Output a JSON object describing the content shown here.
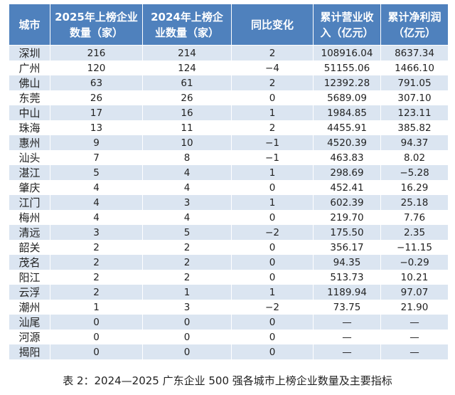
{
  "table": {
    "header": [
      "城市",
      "2025年上榜企业数量（家）",
      "2024年上榜企业数量（家）",
      "同比变化",
      "累计营业收入（亿元）",
      "累计净利润（亿元）"
    ],
    "rows": [
      [
        "深圳",
        "216",
        "214",
        "2",
        "108916.04",
        "8637.34"
      ],
      [
        "广州",
        "120",
        "124",
        "−4",
        "51155.06",
        "1466.10"
      ],
      [
        "佛山",
        "63",
        "61",
        "2",
        "12392.28",
        "791.05"
      ],
      [
        "东莞",
        "26",
        "26",
        "0",
        "5689.09",
        "307.10"
      ],
      [
        "中山",
        "17",
        "16",
        "1",
        "1984.85",
        "123.11"
      ],
      [
        "珠海",
        "13",
        "11",
        "2",
        "4455.91",
        "385.82"
      ],
      [
        "惠州",
        "9",
        "10",
        "−1",
        "4520.39",
        "94.37"
      ],
      [
        "汕头",
        "7",
        "8",
        "−1",
        "463.83",
        "8.02"
      ],
      [
        "湛江",
        "5",
        "4",
        "1",
        "298.69",
        "−5.28"
      ],
      [
        "肇庆",
        "4",
        "4",
        "0",
        "452.41",
        "16.29"
      ],
      [
        "江门",
        "4",
        "3",
        "1",
        "602.39",
        "25.18"
      ],
      [
        "梅州",
        "4",
        "4",
        "0",
        "219.70",
        "7.76"
      ],
      [
        "清远",
        "3",
        "5",
        "−2",
        "175.50",
        "2.35"
      ],
      [
        "韶关",
        "2",
        "2",
        "0",
        "356.17",
        "−11.15"
      ],
      [
        "茂名",
        "2",
        "2",
        "0",
        "94.35",
        "−0.29"
      ],
      [
        "阳江",
        "2",
        "2",
        "0",
        "513.73",
        "10.21"
      ],
      [
        "云浮",
        "2",
        "1",
        "1",
        "1189.94",
        "97.07"
      ],
      [
        "潮州",
        "1",
        "3",
        "−2",
        "73.75",
        "21.90"
      ],
      [
        "汕尾",
        "0",
        "0",
        "0",
        "—",
        "—"
      ],
      [
        "河源",
        "0",
        "0",
        "0",
        "—",
        "—"
      ],
      [
        "揭阳",
        "0",
        "0",
        "0",
        "—",
        "—"
      ]
    ],
    "caption": "表 2：2024—2025 广东企业 500 强各城市上榜企业数量及主要指标"
  }
}
